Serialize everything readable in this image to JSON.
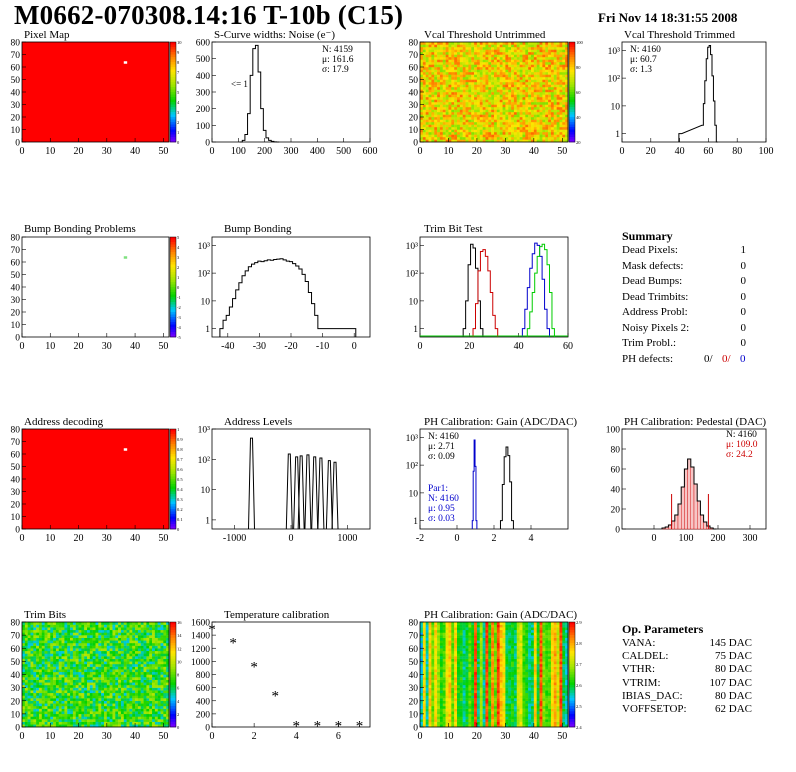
{
  "header": {
    "title": "M0662-070308.14:16 T-10b (C15)",
    "date": "Fri Nov 14 18:31:55 2008"
  },
  "chart_data": [
    {
      "id": "pixel-map",
      "type": "heatmap",
      "title": "Pixel Map",
      "xlim": [
        0,
        52
      ],
      "ylim": [
        0,
        80
      ],
      "xticks": [
        0,
        10,
        20,
        30,
        40,
        50
      ],
      "yticks": [
        0,
        10,
        20,
        30,
        40,
        50,
        60,
        70,
        80
      ],
      "fill": "#ff0000",
      "palette": "rainbow",
      "scale_labels": [
        "10",
        "9",
        "8",
        "7",
        "6",
        "5",
        "4",
        "3",
        "2",
        "1",
        "0"
      ],
      "cells": [
        {
          "x": 36,
          "y": 63,
          "value": 0
        }
      ]
    },
    {
      "id": "scurve",
      "type": "line",
      "title": "S-Curve widths: Noise (e⁻)",
      "xlim": [
        0,
        600
      ],
      "ylim": [
        0,
        600
      ],
      "xticks": [
        0,
        100,
        200,
        300,
        400,
        500,
        600
      ],
      "yticks": [
        0,
        100,
        200,
        300,
        400,
        500,
        600
      ],
      "stats": [
        "N: 4159",
        "μ: 161.6",
        "σ: 17.9"
      ],
      "annotation": "<= 1",
      "x": [
        110,
        120,
        130,
        140,
        150,
        160,
        170,
        180,
        190,
        200,
        210,
        220,
        230,
        240,
        250
      ],
      "y": [
        0,
        10,
        45,
        170,
        400,
        560,
        580,
        420,
        200,
        70,
        25,
        10,
        4,
        1,
        0
      ]
    },
    {
      "id": "vcal-untrimmed",
      "type": "heatmap",
      "title": "Vcal Threshold Untrimmed",
      "xlim": [
        0,
        52
      ],
      "ylim": [
        0,
        80
      ],
      "xticks": [
        0,
        10,
        20,
        30,
        40,
        50
      ],
      "yticks": [
        0,
        10,
        20,
        30,
        40,
        50,
        60,
        70,
        80
      ],
      "palette": "noise-orange",
      "scale_labels": [
        "100",
        "80",
        "60",
        "40",
        "20"
      ]
    },
    {
      "id": "vcal-trimmed",
      "type": "line",
      "title": "Vcal Threshold Trimmed",
      "xlim": [
        0,
        100
      ],
      "yscale": "log",
      "ylim": [
        0.5,
        2000
      ],
      "xticks": [
        0,
        20,
        40,
        60,
        80,
        100
      ],
      "yticks": [
        "1",
        "10",
        "10²",
        "10³"
      ],
      "stats": [
        "N: 4160",
        "μ: 60.7",
        "σ:  1.3"
      ],
      "x": [
        40,
        41,
        56,
        57,
        58,
        59,
        60,
        61,
        62,
        63,
        64,
        65,
        66
      ],
      "y": [
        1,
        1,
        2,
        12,
        80,
        500,
        1300,
        1500,
        700,
        120,
        15,
        2,
        0
      ]
    },
    {
      "id": "bump-map",
      "type": "heatmap",
      "title": "Bump Bonding Problems",
      "xlim": [
        0,
        52
      ],
      "ylim": [
        0,
        80
      ],
      "xticks": [
        0,
        10,
        20,
        30,
        40,
        50
      ],
      "yticks": [
        0,
        10,
        20,
        30,
        40,
        50,
        60,
        70,
        80
      ],
      "fill": "#ffffff",
      "palette": "rainbow",
      "scale_labels": [
        "5",
        "4",
        "3",
        "2",
        "1",
        "0",
        "-1",
        "-2",
        "-3",
        "-4",
        "-5"
      ],
      "cells": [
        {
          "x": 36,
          "y": 63,
          "value": 1
        }
      ]
    },
    {
      "id": "bump-bonding",
      "type": "line",
      "title": "Bump Bonding",
      "xlim": [
        -45,
        5
      ],
      "yscale": "log",
      "ylim": [
        0.5,
        2000
      ],
      "xticks": [
        -40,
        -30,
        -20,
        -10,
        0
      ],
      "yticks": [
        "1",
        "10",
        "10²",
        "10³"
      ],
      "x": [
        -42,
        -41,
        -40,
        -39,
        -38,
        -37,
        -36,
        -35,
        -34,
        -33,
        -32,
        -31,
        -30,
        -29,
        -28,
        -27,
        -26,
        -25,
        -24,
        -23,
        -22,
        -21,
        -20,
        -19,
        -18,
        -17,
        -16,
        -15,
        -14,
        -13,
        -12,
        -11,
        -10,
        0
      ],
      "y": [
        1,
        2,
        3,
        6,
        12,
        25,
        45,
        80,
        120,
        170,
        210,
        240,
        270,
        260,
        280,
        300,
        290,
        310,
        320,
        330,
        300,
        270,
        260,
        220,
        180,
        140,
        90,
        50,
        20,
        8,
        3,
        1,
        1,
        1
      ]
    },
    {
      "id": "trim-bit-test",
      "type": "line",
      "title": "Trim Bit Test",
      "xlim": [
        0,
        60
      ],
      "yscale": "log",
      "ylim": [
        0.5,
        2000
      ],
      "xticks": [
        0,
        20,
        40,
        60
      ],
      "yticks": [
        "1",
        "10",
        "10²",
        "10³"
      ],
      "series": [
        {
          "color": "#000000",
          "x": [
            18,
            19,
            20,
            21,
            22,
            23,
            24,
            25
          ],
          "y": [
            1,
            10,
            200,
            1100,
            800,
            150,
            10,
            1
          ]
        },
        {
          "color": "#cc0000",
          "x": [
            22,
            23,
            24,
            25,
            26,
            27,
            28,
            29,
            30,
            31
          ],
          "y": [
            1,
            8,
            120,
            600,
            700,
            400,
            120,
            20,
            3,
            1
          ]
        },
        {
          "color": "#0000cc",
          "x": [
            42,
            43,
            44,
            45,
            46,
            47,
            48,
            49,
            50,
            51,
            52
          ],
          "y": [
            1,
            5,
            30,
            150,
            500,
            1200,
            1000,
            400,
            60,
            5,
            1
          ]
        },
        {
          "color": "#00cc00",
          "x": [
            44,
            45,
            46,
            47,
            48,
            49,
            50,
            51,
            52,
            53,
            54
          ],
          "y": [
            1,
            4,
            20,
            100,
            400,
            900,
            1100,
            700,
            200,
            20,
            1
          ]
        }
      ]
    },
    {
      "id": "addr-map",
      "type": "heatmap",
      "title": "Address decoding",
      "xlim": [
        0,
        52
      ],
      "ylim": [
        0,
        80
      ],
      "xticks": [
        0,
        10,
        20,
        30,
        40,
        50
      ],
      "yticks": [
        0,
        10,
        20,
        30,
        40,
        50,
        60,
        70,
        80
      ],
      "fill": "#ff0000",
      "palette": "rainbow",
      "scale_labels": [
        "1",
        "0.9",
        "0.8",
        "0.7",
        "0.6",
        "0.5",
        "0.4",
        "0.3",
        "0.2",
        "0.1",
        "0"
      ],
      "cells": [
        {
          "x": 36,
          "y": 63,
          "value": 0
        }
      ]
    },
    {
      "id": "address-levels",
      "type": "line",
      "title": "Address Levels",
      "xlim": [
        -1400,
        1400
      ],
      "yscale": "log",
      "ylim": [
        0.5,
        1000
      ],
      "xticks": [
        -1000,
        0,
        1000
      ],
      "yticks": [
        "1",
        "10",
        "10²",
        "10³"
      ],
      "peaks": [
        -700,
        -30,
        100,
        180,
        300,
        420,
        530,
        680,
        780
      ],
      "peak_heights": [
        500,
        150,
        120,
        130,
        140,
        120,
        110,
        90,
        80
      ]
    },
    {
      "id": "ph-gain",
      "type": "line",
      "title": "PH Calibration: Gain (ADC/DAC)",
      "xlim": [
        -2,
        6
      ],
      "yscale": "log",
      "ylim": [
        0.5,
        2000
      ],
      "xticks": [
        -2,
        0,
        2,
        4
      ],
      "yticks": [
        "1",
        "10",
        "10²",
        "10³"
      ],
      "stats": [
        "N: 4160",
        "μ: 2.71",
        "σ: 0.09"
      ],
      "stats2": [
        "Par1:",
        "N: 4160",
        "μ: 0.95",
        "σ: 0.03"
      ],
      "series": [
        {
          "color": "#000000",
          "x": [
            2.4,
            2.5,
            2.6,
            2.7,
            2.8,
            2.9,
            3.0
          ],
          "y": [
            1,
            20,
            200,
            450,
            220,
            25,
            1
          ]
        },
        {
          "color": "#0000cc",
          "x": [
            0.85,
            0.9,
            0.95,
            1.0,
            1.05
          ],
          "y": [
            1,
            60,
            800,
            90,
            1
          ]
        }
      ]
    },
    {
      "id": "ph-pedestal",
      "type": "line",
      "title": "PH Calibration: Pedestal (DAC)",
      "xlim": [
        -100,
        350
      ],
      "ylim": [
        0,
        100
      ],
      "xticks": [
        0,
        100,
        200,
        300
      ],
      "yticks": [
        0,
        20,
        40,
        60,
        80,
        100
      ],
      "stats": [
        "N: 4160"
      ],
      "stats2": [
        "μ: 109.0",
        "σ: 24.2"
      ],
      "x": [
        30,
        40,
        50,
        60,
        70,
        80,
        90,
        100,
        110,
        120,
        130,
        140,
        150,
        160,
        170,
        180,
        190
      ],
      "y": [
        1,
        2,
        4,
        8,
        14,
        25,
        42,
        60,
        70,
        62,
        45,
        28,
        14,
        7,
        3,
        1,
        0
      ]
    },
    {
      "id": "trim-bits",
      "type": "heatmap",
      "title": "Trim Bits",
      "xlim": [
        0,
        52
      ],
      "ylim": [
        0,
        80
      ],
      "xticks": [
        0,
        10,
        20,
        30,
        40,
        50
      ],
      "yticks": [
        0,
        10,
        20,
        30,
        40,
        50,
        60,
        70,
        80
      ],
      "palette": "noise-green",
      "scale_labels": [
        "16",
        "14",
        "12",
        "10",
        "8",
        "6",
        "4",
        "2",
        "0"
      ]
    },
    {
      "id": "temp-cal",
      "type": "scatter",
      "title": "Temperature calibration",
      "xlim": [
        0,
        7.5
      ],
      "ylim": [
        0,
        1600
      ],
      "xticks": [
        0,
        2,
        4,
        6
      ],
      "yticks": [
        0,
        200,
        400,
        600,
        800,
        1000,
        1200,
        1400,
        1600
      ],
      "x": [
        0,
        1,
        2,
        3,
        4,
        5,
        6,
        7
      ],
      "y": [
        1490,
        1290,
        920,
        480,
        20,
        20,
        20,
        20
      ]
    },
    {
      "id": "ph-gain-map",
      "type": "heatmap",
      "title": "PH Calibration: Gain (ADC/DAC)",
      "xlim": [
        0,
        52
      ],
      "ylim": [
        0,
        80
      ],
      "xticks": [
        0,
        10,
        20,
        30,
        40,
        50
      ],
      "yticks": [
        0,
        10,
        20,
        30,
        40,
        50,
        60,
        70,
        80
      ],
      "palette": "columns",
      "scale_labels": [
        "2.9",
        "2.8",
        "2.7",
        "2.6",
        "2.5",
        "2.4"
      ]
    }
  ],
  "summary": {
    "heading": "Summary",
    "rows": [
      {
        "label": "Dead Pixels:",
        "value": "1"
      },
      {
        "label": "Mask defects:",
        "value": "0"
      },
      {
        "label": "Dead Bumps:",
        "value": "0"
      },
      {
        "label": "Dead Trimbits:",
        "value": "0"
      },
      {
        "label": "Address Probl:",
        "value": "0"
      },
      {
        "label": "Noisy Pixels 2:",
        "value": "0"
      },
      {
        "label": "Trim Probl.:",
        "value": "0"
      }
    ],
    "ph_label": "PH defects:",
    "ph_values": [
      {
        "v": "0/",
        "color": "#000000"
      },
      {
        "v": "0/",
        "color": "#cc0000"
      },
      {
        "v": "0",
        "color": "#0000cc"
      }
    ]
  },
  "op_params": {
    "heading": "Op. Parameters",
    "rows": [
      {
        "label": "VANA:",
        "value": "145 DAC"
      },
      {
        "label": "CALDEL:",
        "value": "75 DAC"
      },
      {
        "label": "VTHR:",
        "value": "80 DAC"
      },
      {
        "label": "VTRIM:",
        "value": "107 DAC"
      },
      {
        "label": "IBIAS_DAC:",
        "value": "80 DAC"
      },
      {
        "label": "VOFFSETOP:",
        "value": "62 DAC"
      }
    ]
  }
}
